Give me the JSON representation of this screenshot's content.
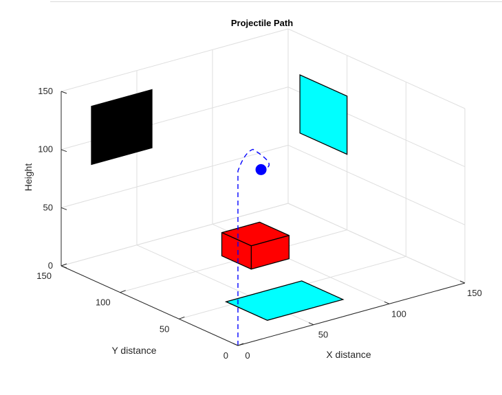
{
  "chart_data": {
    "type": "3d-scene",
    "title": "Projectile Path",
    "xlabel": "X distance",
    "ylabel": "Y distance",
    "zlabel": "Height",
    "xlim": [
      0,
      150
    ],
    "ylim": [
      0,
      150
    ],
    "zlim": [
      0,
      150
    ],
    "x_ticks": [
      0,
      50,
      100,
      150
    ],
    "y_ticks": [
      0,
      50,
      100,
      150
    ],
    "z_ticks": [
      0,
      50,
      100,
      150
    ],
    "grid": true,
    "trajectory": {
      "color": "#0000ff",
      "style": "dashed",
      "points": [
        [
          0,
          0,
          0
        ],
        [
          0,
          0,
          150
        ],
        [
          20,
          20,
          150
        ],
        [
          45,
          45,
          132
        ],
        [
          69,
          69,
          95
        ]
      ]
    },
    "ball": {
      "position": [
        69,
        69,
        95
      ],
      "color": "#0000ff"
    },
    "objects": [
      {
        "name": "floor-pad",
        "color": "#00ffff",
        "corners": [
          [
            35,
            55,
            0
          ],
          [
            85,
            55,
            0
          ],
          [
            85,
            20,
            0
          ],
          [
            35,
            20,
            0
          ]
        ]
      },
      {
        "name": "left-wall-panel",
        "color": "#000000",
        "corners": [
          [
            20,
            150,
            80
          ],
          [
            60,
            150,
            80
          ],
          [
            60,
            150,
            130
          ],
          [
            20,
            150,
            130
          ]
        ]
      },
      {
        "name": "right-wall-panel",
        "color": "#00ffff",
        "corners": [
          [
            150,
            140,
            65
          ],
          [
            150,
            100,
            65
          ],
          [
            150,
            100,
            115
          ],
          [
            150,
            140,
            115
          ]
        ]
      },
      {
        "name": "target-box",
        "color": "#ff0000",
        "min": [
          75,
          85,
          0
        ],
        "max": [
          100,
          110,
          20
        ]
      }
    ]
  }
}
